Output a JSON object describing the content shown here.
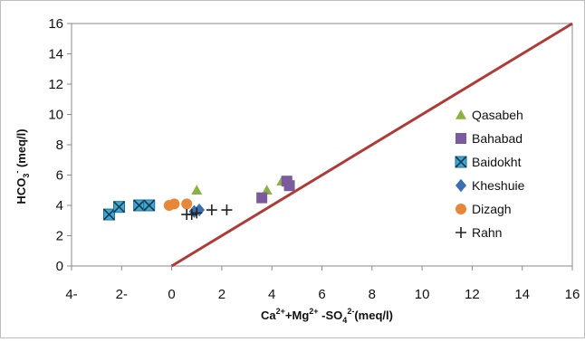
{
  "chart_data": {
    "type": "scatter",
    "xlim": [
      -4,
      16
    ],
    "ylim": [
      0,
      16
    ],
    "xticks": [
      -4,
      -2,
      0,
      2,
      4,
      6,
      8,
      10,
      12,
      14,
      16
    ],
    "yticks": [
      0,
      2,
      4,
      6,
      8,
      10,
      12,
      14,
      16
    ],
    "xtick_labels": [
      "4-",
      "2-",
      "0",
      "2",
      "4",
      "6",
      "8",
      "10",
      "12",
      "14",
      "16"
    ],
    "ytick_labels": [
      "0",
      "2",
      "4",
      "6",
      "8",
      "10",
      "12",
      "14",
      "16"
    ],
    "xlabel": {
      "p1": "Ca",
      "p1sup": "2+",
      "p2": "+Mg",
      "p2sup": "2+",
      "p3": " -SO",
      "p3sub": "4",
      "p3sup": "2-",
      "p4": "(meq/l)"
    },
    "ylabel": {
      "p1": "HCO",
      "p1sub": "3",
      "p1sup": "-",
      "p2": " (meq/l)"
    },
    "grid": false,
    "legend_position": "right",
    "reference_line": {
      "x": [
        0,
        16
      ],
      "y": [
        0,
        16
      ],
      "color": "#b03a36"
    },
    "series": [
      {
        "name": "Qasabeh",
        "marker": "triangle",
        "color": "#8db043",
        "points": [
          [
            1.0,
            5.0
          ],
          [
            3.8,
            5.0
          ],
          [
            4.4,
            5.6
          ],
          [
            4.7,
            5.6
          ]
        ]
      },
      {
        "name": "Bahabad",
        "marker": "square",
        "color": "#7c5a9e",
        "points": [
          [
            3.6,
            4.5
          ],
          [
            4.6,
            5.6
          ],
          [
            4.7,
            5.3
          ]
        ]
      },
      {
        "name": "Baidokht",
        "marker": "xsquare",
        "color": "#3ea9d2",
        "points": [
          [
            -2.5,
            3.4
          ],
          [
            -2.1,
            3.9
          ],
          [
            -1.3,
            4.0
          ],
          [
            -0.9,
            4.0
          ]
        ]
      },
      {
        "name": "Kheshuie",
        "marker": "diamond",
        "color": "#3b6fb0",
        "points": [
          [
            0.9,
            3.6
          ],
          [
            1.1,
            3.7
          ]
        ]
      },
      {
        "name": "Dizagh",
        "marker": "circle",
        "color": "#e88738",
        "points": [
          [
            -0.1,
            4.0
          ],
          [
            0.1,
            4.1
          ],
          [
            0.6,
            4.1
          ]
        ]
      },
      {
        "name": "Rahn",
        "marker": "plus",
        "color": "#222222",
        "points": [
          [
            0.6,
            3.4
          ],
          [
            0.8,
            3.4
          ],
          [
            1.0,
            3.5
          ],
          [
            1.6,
            3.7
          ],
          [
            2.2,
            3.7
          ]
        ]
      }
    ]
  }
}
